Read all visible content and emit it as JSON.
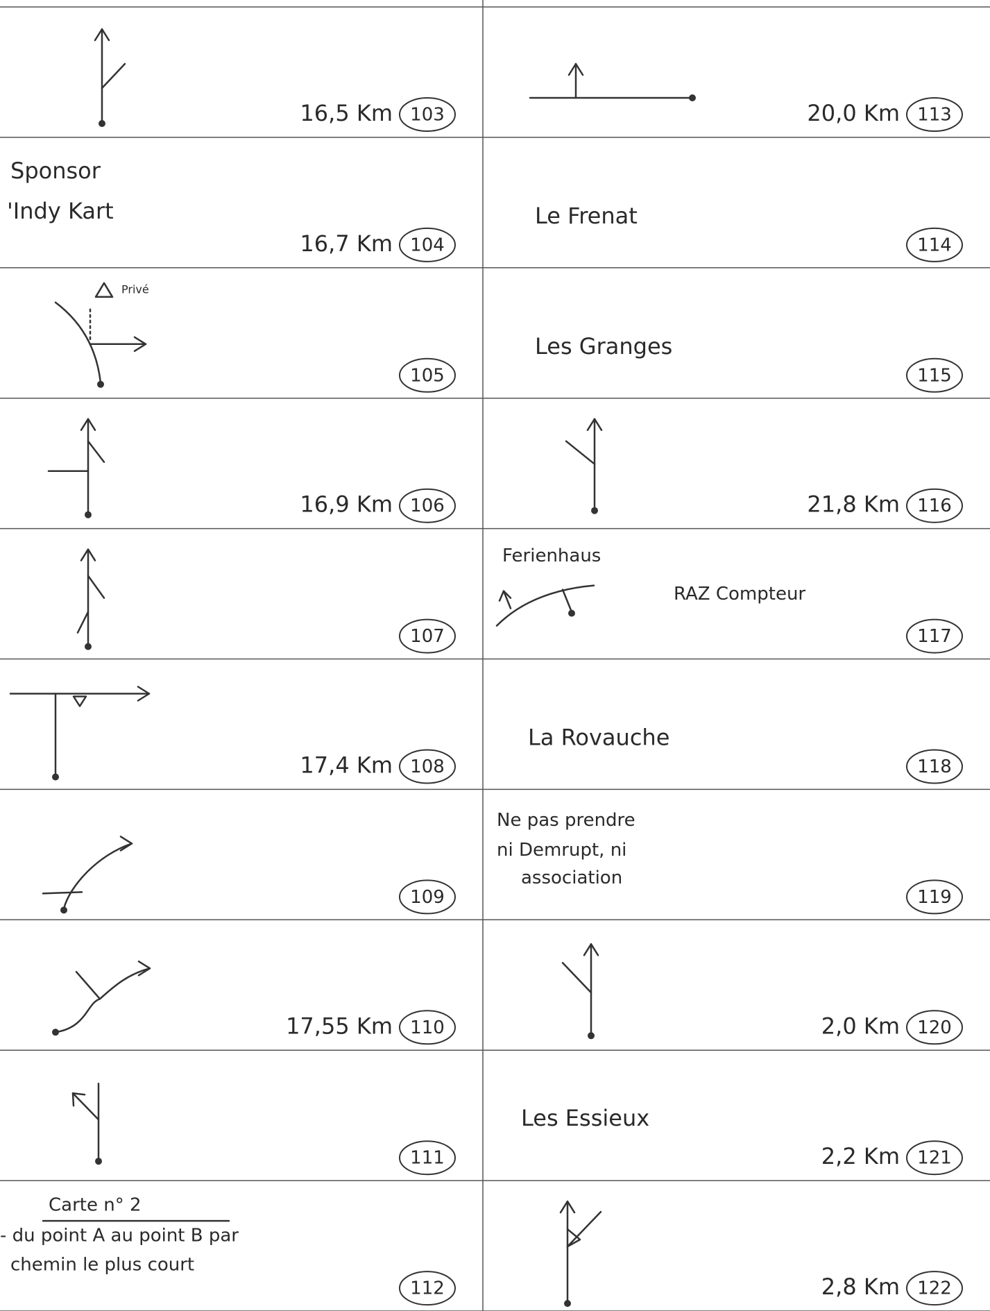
{
  "left": [
    {
      "number": "103",
      "distance": "16,5 Km"
    },
    {
      "number": "104",
      "distance": "16,7 Km",
      "notes": [
        "Sponsor",
        "'Indy Kart"
      ]
    },
    {
      "number": "105",
      "notes": [
        "Privé"
      ]
    },
    {
      "number": "106",
      "distance": "16,9 Km"
    },
    {
      "number": "107"
    },
    {
      "number": "108",
      "distance": "17,4 Km"
    },
    {
      "number": "109"
    },
    {
      "number": "110",
      "distance": "17,55 Km"
    },
    {
      "number": "111"
    },
    {
      "number": "112",
      "notes": [
        "Carte n° 2",
        "- du point A au point B par",
        "chemin le plus court"
      ]
    }
  ],
  "right": [
    {
      "number": "113",
      "distance": "20,0 Km"
    },
    {
      "number": "114",
      "notes": [
        "Le Frenat"
      ]
    },
    {
      "number": "115",
      "notes": [
        "Les Granges"
      ]
    },
    {
      "number": "116",
      "distance": "21,8 Km"
    },
    {
      "number": "117",
      "notes": [
        "Ferienhaus",
        "RAZ Compteur"
      ]
    },
    {
      "number": "118",
      "notes": [
        "La Rovauche"
      ]
    },
    {
      "number": "119",
      "notes": [
        "Ne pas prendre",
        "ni Demrupt, ni",
        "association"
      ]
    },
    {
      "number": "120",
      "distance": "2,0 Km"
    },
    {
      "number": "121",
      "distance": "2,2 Km",
      "notes": [
        "Les Essieux"
      ]
    },
    {
      "number": "122",
      "distance": "2,8 Km"
    }
  ]
}
